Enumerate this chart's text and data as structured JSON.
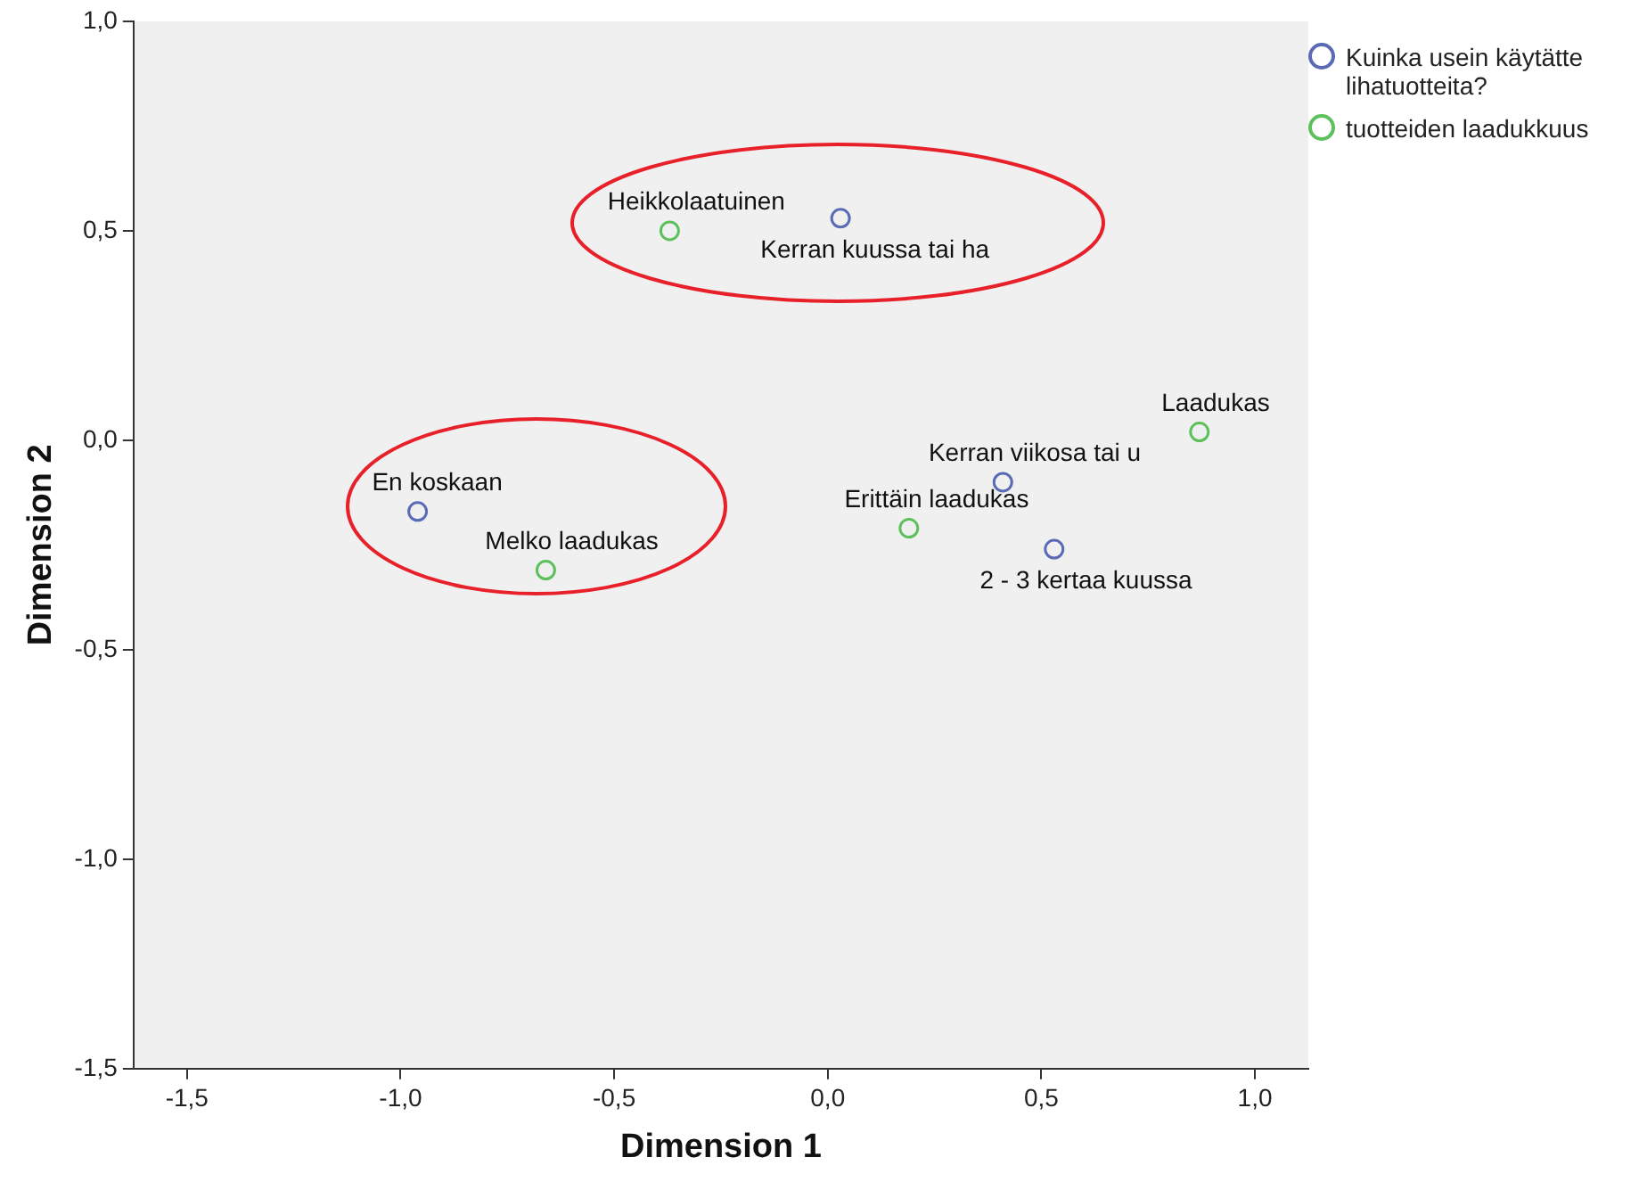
{
  "chart_data": {
    "type": "scatter",
    "xlabel": "Dimension 1",
    "ylabel": "Dimension 2",
    "marker": "circle",
    "legend": "right",
    "grid": false,
    "xlim": [
      -1.625,
      1.125
    ],
    "ylim": [
      -1.5,
      1.0
    ],
    "xticks": [
      {
        "value": -1.5,
        "label": "-1,5"
      },
      {
        "value": -1.0,
        "label": "-1,0"
      },
      {
        "value": -0.5,
        "label": "-0,5"
      },
      {
        "value": 0,
        "label": "0,0"
      },
      {
        "value": 0.5,
        "label": "0,5"
      },
      {
        "value": 1.0,
        "label": "1,0"
      }
    ],
    "yticks": [
      {
        "value": -1.5,
        "label": "-1,5"
      },
      {
        "value": -1.0,
        "label": "-1,0"
      },
      {
        "value": -0.5,
        "label": "-0,5"
      },
      {
        "value": 0,
        "label": "0,0"
      },
      {
        "value": 0.5,
        "label": "0,5"
      },
      {
        "value": 1.0,
        "label": "1,0"
      }
    ],
    "series": [
      {
        "name": "Kuinka usein käytätte lihatuotteita?",
        "color": "#5a6ab4",
        "x": [
          -0.96,
          0.03,
          0.41,
          0.53
        ],
        "values": [
          -0.17,
          0.53,
          -0.1,
          -0.26
        ]
      },
      {
        "name": "tuotteiden laadukkuus",
        "color": "#5cc05c",
        "x": [
          -0.37,
          -0.66,
          0.19,
          0.87
        ],
        "values": [
          0.5,
          -0.31,
          -0.21,
          0.02
        ]
      }
    ],
    "annotations": [
      {
        "text": "Heikkolaatuinen",
        "x": -0.37,
        "y": 0.5
      },
      {
        "text": "Kerran kuussa tai ha",
        "x": 0.03,
        "y": 0.53
      },
      {
        "text": "Laadukas",
        "x": 0.87,
        "y": 0.02
      },
      {
        "text": "Kerran viikosa tai u",
        "x": 0.41,
        "y": -0.1
      },
      {
        "text": "Erittäin laadukas",
        "x": 0.19,
        "y": -0.21
      },
      {
        "text": "2 - 3 kertaa kuussa",
        "x": 0.53,
        "y": -0.26
      },
      {
        "text": "En koskaan",
        "x": -0.96,
        "y": -0.17
      },
      {
        "text": "Melko laadukas",
        "x": -0.66,
        "y": -0.31
      }
    ]
  }
}
